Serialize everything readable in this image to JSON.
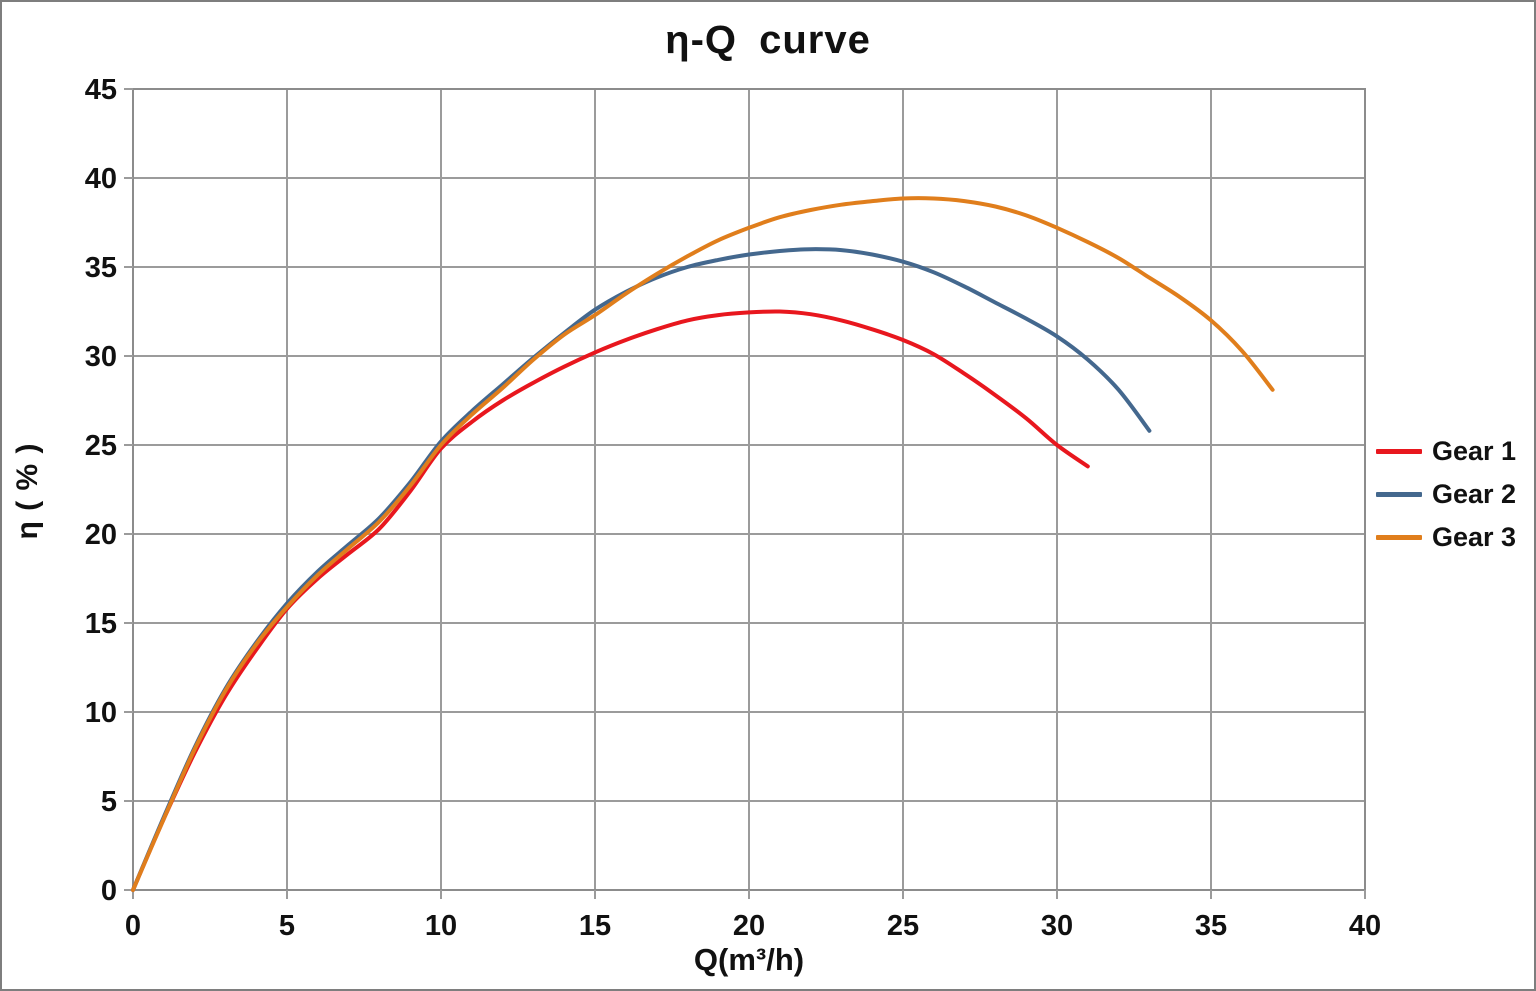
{
  "window": {
    "background": "#ffffff",
    "border_color": "#7e7e7e"
  },
  "chart_data": {
    "type": "line",
    "title": "η-Q  curve",
    "xlabel": "Q(m³/h)",
    "ylabel": "η ( % )",
    "xlim": [
      0,
      40
    ],
    "xtick_step": 5,
    "ylim": [
      0,
      45
    ],
    "ytick_step": 5,
    "grid": true,
    "grid_color": "#9b9b9b",
    "plot_border_color": "#8c8c8c",
    "tick_color": "#9b9b9b",
    "text_color": "#111111",
    "legend_position": "right",
    "series": [
      {
        "name": "Gear 1",
        "color": "#e8171e",
        "points": [
          [
            0,
            0
          ],
          [
            1,
            4.0
          ],
          [
            2,
            7.7
          ],
          [
            3,
            10.9
          ],
          [
            4,
            13.5
          ],
          [
            5,
            15.8
          ],
          [
            6,
            17.5
          ],
          [
            7,
            18.9
          ],
          [
            8,
            20.3
          ],
          [
            9,
            22.4
          ],
          [
            10,
            24.8
          ],
          [
            11,
            26.3
          ],
          [
            12,
            27.5
          ],
          [
            13,
            28.5
          ],
          [
            14,
            29.4
          ],
          [
            15,
            30.2
          ],
          [
            16,
            30.9
          ],
          [
            17,
            31.5
          ],
          [
            18,
            32.0
          ],
          [
            19,
            32.3
          ],
          [
            20,
            32.45
          ],
          [
            21,
            32.5
          ],
          [
            22,
            32.35
          ],
          [
            23,
            32.0
          ],
          [
            24,
            31.5
          ],
          [
            25,
            30.9
          ],
          [
            26,
            30.1
          ],
          [
            27,
            29.0
          ],
          [
            28,
            27.8
          ],
          [
            29,
            26.5
          ],
          [
            30,
            25.0
          ],
          [
            31,
            23.8
          ]
        ]
      },
      {
        "name": "Gear 2",
        "color": "#44688e",
        "points": [
          [
            0,
            0
          ],
          [
            1,
            4.1
          ],
          [
            2,
            8.0
          ],
          [
            3,
            11.3
          ],
          [
            4,
            13.9
          ],
          [
            5,
            16.1
          ],
          [
            6,
            17.9
          ],
          [
            7,
            19.4
          ],
          [
            8,
            20.9
          ],
          [
            9,
            22.9
          ],
          [
            10,
            25.2
          ],
          [
            11,
            26.9
          ],
          [
            12,
            28.4
          ],
          [
            13,
            29.9
          ],
          [
            14,
            31.3
          ],
          [
            15,
            32.6
          ],
          [
            16,
            33.6
          ],
          [
            17,
            34.4
          ],
          [
            18,
            35.0
          ],
          [
            19,
            35.4
          ],
          [
            20,
            35.7
          ],
          [
            21,
            35.9
          ],
          [
            22,
            36.0
          ],
          [
            23,
            35.95
          ],
          [
            24,
            35.7
          ],
          [
            25,
            35.3
          ],
          [
            26,
            34.7
          ],
          [
            27,
            33.9
          ],
          [
            28,
            33.0
          ],
          [
            29,
            32.1
          ],
          [
            30,
            31.1
          ],
          [
            31,
            29.8
          ],
          [
            32,
            28.1
          ],
          [
            33,
            25.8
          ]
        ]
      },
      {
        "name": "Gear 3",
        "color": "#e07e1c",
        "points": [
          [
            0,
            0
          ],
          [
            1,
            4.0
          ],
          [
            2,
            7.9
          ],
          [
            3,
            11.2
          ],
          [
            4,
            13.8
          ],
          [
            5,
            15.9
          ],
          [
            6,
            17.7
          ],
          [
            7,
            19.2
          ],
          [
            8,
            20.7
          ],
          [
            9,
            22.7
          ],
          [
            10,
            25.0
          ],
          [
            11,
            26.7
          ],
          [
            12,
            28.2
          ],
          [
            13,
            29.8
          ],
          [
            14,
            31.2
          ],
          [
            15,
            32.3
          ],
          [
            16,
            33.5
          ],
          [
            17,
            34.6
          ],
          [
            18,
            35.6
          ],
          [
            19,
            36.5
          ],
          [
            20,
            37.2
          ],
          [
            21,
            37.8
          ],
          [
            22,
            38.2
          ],
          [
            23,
            38.5
          ],
          [
            24,
            38.7
          ],
          [
            25,
            38.85
          ],
          [
            26,
            38.85
          ],
          [
            27,
            38.7
          ],
          [
            28,
            38.4
          ],
          [
            29,
            37.9
          ],
          [
            30,
            37.2
          ],
          [
            31,
            36.4
          ],
          [
            32,
            35.5
          ],
          [
            33,
            34.4
          ],
          [
            34,
            33.3
          ],
          [
            35,
            32.0
          ],
          [
            36,
            30.3
          ],
          [
            37,
            28.1
          ]
        ]
      }
    ]
  }
}
